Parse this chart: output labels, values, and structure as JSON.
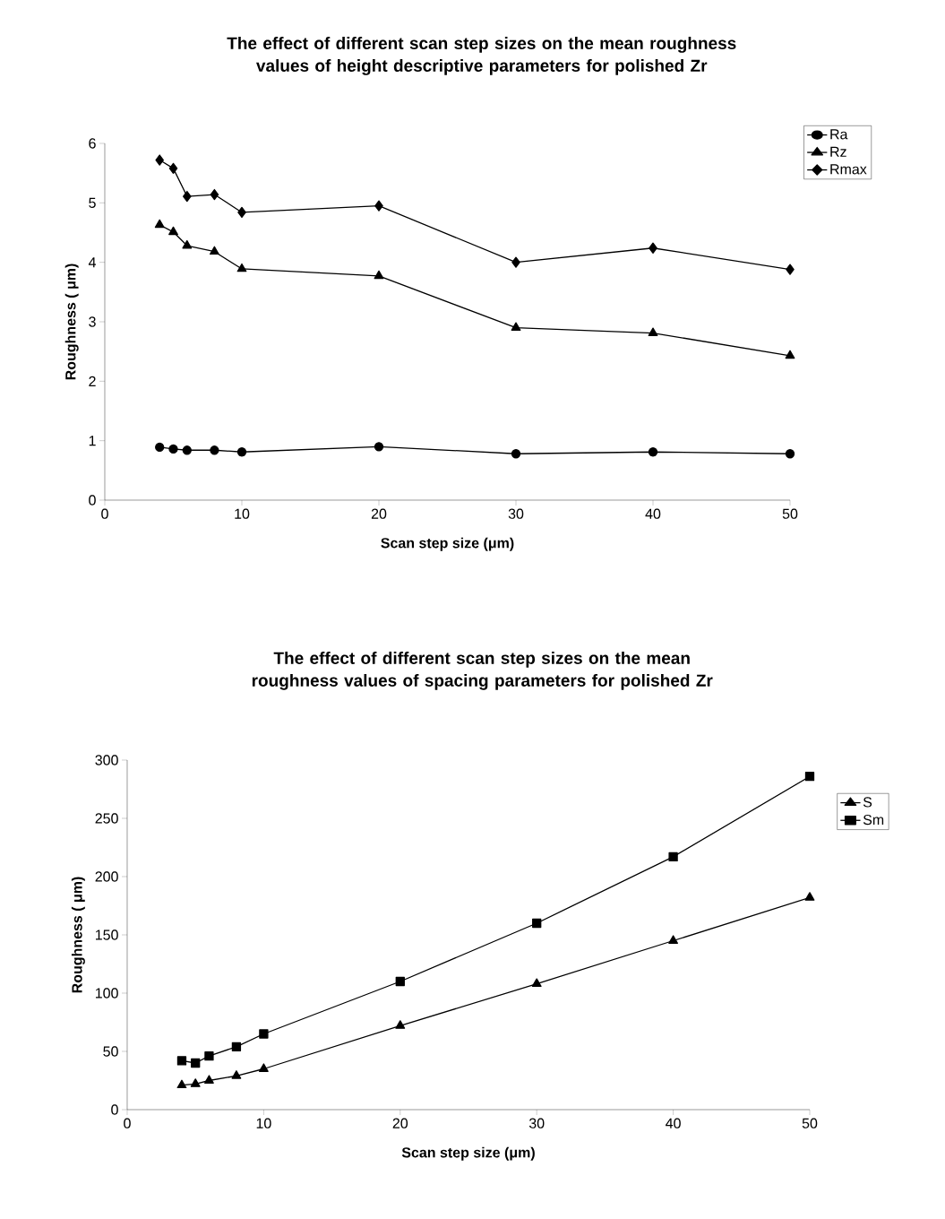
{
  "chart_data": [
    {
      "type": "line",
      "title": "The effect of different scan step sizes on the mean roughness values of height descriptive parameters for polished Zr",
      "xlabel": "Scan step size (μm)",
      "ylabel": "Roughness ( μm)",
      "x": [
        4,
        5,
        6,
        8,
        10,
        20,
        30,
        40,
        50
      ],
      "xlim": [
        0,
        50
      ],
      "ylim": [
        0,
        6
      ],
      "xticks": [
        0,
        10,
        20,
        30,
        40,
        50
      ],
      "yticks": [
        0,
        1,
        2,
        3,
        4,
        5,
        6
      ],
      "legend": "right",
      "line_style": "solid",
      "series": [
        {
          "name": "Ra",
          "color": "#000000",
          "marker": "circle",
          "values": [
            0.89,
            0.86,
            0.84,
            0.84,
            0.81,
            0.9,
            0.78,
            0.81,
            0.78
          ]
        },
        {
          "name": "Rz",
          "color": "#000000",
          "marker": "triangle",
          "values": [
            4.63,
            4.51,
            4.28,
            4.18,
            3.89,
            3.77,
            2.9,
            2.81,
            2.43
          ]
        },
        {
          "name": "Rmax",
          "color": "#000000",
          "marker": "diamond",
          "values": [
            5.72,
            5.58,
            5.11,
            5.14,
            4.84,
            4.95,
            4.0,
            4.24,
            3.88
          ]
        }
      ]
    },
    {
      "type": "line",
      "title": "The effect of different scan step sizes on the mean roughness values of spacing parameters for polished Zr",
      "xlabel": "Scan step size (μm)",
      "ylabel": "Roughness ( μm)",
      "x": [
        4,
        5,
        6,
        8,
        10,
        20,
        30,
        40,
        50
      ],
      "xlim": [
        0,
        50
      ],
      "ylim": [
        0,
        300
      ],
      "xticks": [
        0,
        10,
        20,
        30,
        40,
        50
      ],
      "yticks": [
        0,
        50,
        100,
        150,
        200,
        250,
        300
      ],
      "legend": "right",
      "line_style": "solid",
      "series": [
        {
          "name": "S",
          "color": "#000000",
          "marker": "triangle",
          "values": [
            21,
            22,
            25,
            29,
            35,
            72,
            108,
            145,
            182
          ]
        },
        {
          "name": "Sm",
          "color": "#000000",
          "marker": "square",
          "values": [
            42,
            40,
            46,
            54,
            65,
            110,
            160,
            217,
            286
          ]
        }
      ]
    }
  ]
}
